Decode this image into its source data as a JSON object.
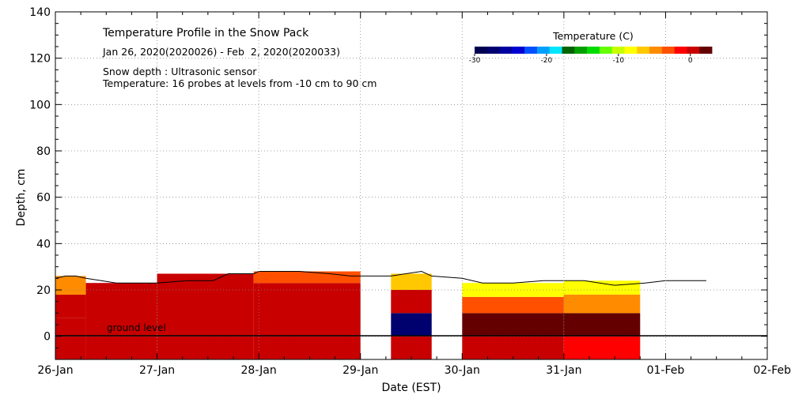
{
  "chart_data": {
    "type": "heatmap",
    "title": "Temperature Profile in the Snow Pack",
    "subtitle": "Jan 26, 2020(2020026) - Feb  2, 2020(2020033)",
    "annotations": [
      "Snow depth : Ultrasonic sensor",
      "Temperature: 16 probes at levels from -10 cm to 90 cm"
    ],
    "ground_label": "ground level",
    "xlabel": "Date (EST)",
    "ylabel": "Depth, cm",
    "x_ticks": [
      "26-Jan",
      "27-Jan",
      "28-Jan",
      "29-Jan",
      "30-Jan",
      "31-Jan",
      "01-Feb",
      "02-Feb"
    ],
    "xlim_days": [
      0,
      7
    ],
    "ylim": [
      -10,
      140
    ],
    "y_ticks": [
      0,
      20,
      40,
      60,
      80,
      100,
      120,
      140
    ],
    "grid": true,
    "colorbar": {
      "title": "Temperature (C)",
      "range": [
        -30,
        3
      ],
      "ticks": [
        -30,
        -20,
        -10,
        0
      ],
      "colors": [
        "#000050",
        "#00006e",
        "#0000a0",
        "#0000d2",
        "#0050ff",
        "#00a0ff",
        "#00e6ff",
        "#006400",
        "#00a000",
        "#00dc00",
        "#64ff00",
        "#c8ff00",
        "#ffff00",
        "#ffc800",
        "#ff8c00",
        "#ff5000",
        "#ff0000",
        "#c80000",
        "#640000"
      ]
    },
    "snow_depth": {
      "series_description": "Snow depth (cm) from ultrasonic sensor",
      "x_day": [
        0.0,
        0.1,
        0.2,
        0.3,
        0.45,
        0.6,
        0.75,
        0.9,
        1.0,
        1.3,
        1.55,
        1.7,
        1.95,
        2.0,
        2.4,
        2.7,
        2.9,
        3.0,
        3.3,
        3.6,
        3.7,
        4.0,
        4.2,
        4.5,
        4.8,
        5.2,
        5.5,
        5.8,
        6.0,
        6.4
      ],
      "depth": [
        25,
        26,
        26,
        25,
        24,
        23,
        23,
        23,
        23,
        24,
        24,
        27,
        27,
        28,
        28,
        27,
        26,
        26,
        26,
        28,
        26,
        25,
        23,
        23,
        24,
        24,
        22,
        23,
        24,
        24
      ]
    },
    "temperature_bands": [
      {
        "day_start": 0.0,
        "day_end": 0.3,
        "layers": [
          [
            -10,
            0,
            1
          ],
          [
            0,
            8,
            0
          ],
          [
            8,
            18,
            0.5
          ],
          [
            18,
            26,
            -4
          ]
        ]
      },
      {
        "day_start": 0.3,
        "day_end": 1.0,
        "layers": [
          [
            -10,
            0,
            0.5
          ],
          [
            0,
            23,
            0.2
          ]
        ]
      },
      {
        "day_start": 1.0,
        "day_end": 1.95,
        "layers": [
          [
            -10,
            0,
            0.5
          ],
          [
            0,
            27,
            0.2
          ]
        ]
      },
      {
        "day_start": 1.95,
        "day_end": 3.0,
        "layers": [
          [
            -10,
            0,
            0.5
          ],
          [
            0,
            23,
            0.3
          ],
          [
            23,
            28,
            -3
          ]
        ]
      },
      {
        "day_start": 3.3,
        "day_end": 3.7,
        "layers": [
          [
            -10,
            0,
            0.4
          ],
          [
            0,
            10,
            -28
          ],
          [
            10,
            20,
            0.3
          ],
          [
            20,
            27,
            -6
          ]
        ]
      },
      {
        "day_start": 4.0,
        "day_end": 5.0,
        "layers": [
          [
            -10,
            0,
            0.3
          ],
          [
            0,
            10,
            2.5
          ],
          [
            10,
            17,
            -3
          ],
          [
            17,
            23,
            -8
          ]
        ]
      },
      {
        "day_start": 5.0,
        "day_end": 5.75,
        "layers": [
          [
            -10,
            0,
            -1
          ],
          [
            0,
            10,
            2.5
          ],
          [
            10,
            18,
            -4
          ],
          [
            18,
            24,
            -9
          ]
        ]
      }
    ]
  }
}
